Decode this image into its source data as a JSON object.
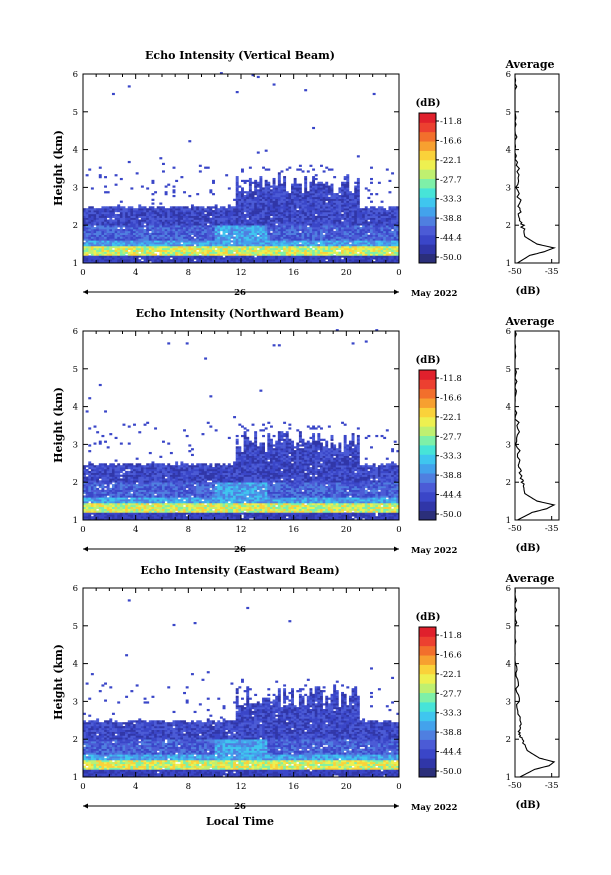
{
  "figure": {
    "xlabel": "Local Time",
    "date_label": "May 2022",
    "day_label": "26"
  },
  "colorbar": {
    "unit": "(dB)",
    "ticks": [
      "-11.8",
      "-16.6",
      "-22.1",
      "-27.7",
      "-33.3",
      "-38.8",
      "-44.4",
      "-50.0"
    ],
    "colors": [
      "#2b2f7a",
      "#3036a8",
      "#3a46c8",
      "#4b5bd6",
      "#4f7fe0",
      "#43a2ec",
      "#3fc6ef",
      "#47e4d8",
      "#7ef0a8",
      "#bff070",
      "#eef050",
      "#fad23a",
      "#f7a030",
      "#f26f2c",
      "#ec4030",
      "#e0202c"
    ]
  },
  "chart_data": [
    {
      "type": "heatmap",
      "title": "Echo Intensity (Vertical Beam)",
      "ylabel": "Height (km)",
      "xlim": [
        0,
        24
      ],
      "ylim": [
        1,
        6
      ],
      "x_ticks": [
        "0",
        "4",
        "8",
        "12",
        "16",
        "20",
        "0"
      ],
      "y_ticks": [
        "1",
        "2",
        "3",
        "4",
        "5",
        "6"
      ],
      "colorbar_range_db": [
        -50.0,
        -11.8
      ],
      "profile": {
        "title": "Average",
        "xlabel": "(dB)",
        "x_ticks": [
          "-50",
          "-35"
        ],
        "heights_km": [
          1.0,
          1.2,
          1.3,
          1.4,
          1.5,
          1.7,
          2.0,
          2.2,
          2.5,
          3.0,
          3.5,
          4.0,
          4.5,
          5.0,
          5.5,
          6.0
        ],
        "db": [
          -49,
          -44,
          -38,
          -34,
          -41,
          -46,
          -47,
          -48,
          -48,
          -49,
          -49,
          -50,
          -50,
          -50,
          -50,
          -50
        ]
      }
    },
    {
      "type": "heatmap",
      "title": "Echo Intensity (Northward Beam)",
      "ylabel": "Height (km)",
      "xlim": [
        0,
        24
      ],
      "ylim": [
        1,
        6
      ],
      "x_ticks": [
        "0",
        "4",
        "8",
        "12",
        "16",
        "20",
        "0"
      ],
      "y_ticks": [
        "1",
        "2",
        "3",
        "4",
        "5",
        "6"
      ],
      "colorbar_range_db": [
        -50.0,
        -11.8
      ],
      "profile": {
        "title": "Average",
        "xlabel": "(dB)",
        "x_ticks": [
          "-50",
          "-35"
        ],
        "heights_km": [
          1.0,
          1.2,
          1.3,
          1.4,
          1.5,
          1.7,
          2.0,
          2.2,
          2.5,
          3.0,
          3.5,
          4.0,
          4.5,
          5.0,
          5.5,
          6.0
        ],
        "db": [
          -49,
          -43,
          -37,
          -34,
          -41,
          -46,
          -47,
          -48,
          -48,
          -49,
          -49,
          -50,
          -50,
          -50,
          -50,
          -50
        ]
      }
    },
    {
      "type": "heatmap",
      "title": "Echo Intensity (Eastward Beam)",
      "ylabel": "Height (km)",
      "xlim": [
        0,
        24
      ],
      "ylim": [
        1,
        6
      ],
      "x_ticks": [
        "0",
        "4",
        "8",
        "12",
        "16",
        "20",
        "0"
      ],
      "y_ticks": [
        "1",
        "2",
        "3",
        "4",
        "5",
        "6"
      ],
      "colorbar_range_db": [
        -50.0,
        -11.8
      ],
      "profile": {
        "title": "Average",
        "xlabel": "(dB)",
        "x_ticks": [
          "-50",
          "-35"
        ],
        "heights_km": [
          1.0,
          1.2,
          1.3,
          1.4,
          1.5,
          1.7,
          2.0,
          2.2,
          2.5,
          3.0,
          3.5,
          4.0,
          4.5,
          5.0,
          5.5,
          6.0
        ],
        "db": [
          -48,
          -42,
          -36,
          -34,
          -40,
          -45,
          -47,
          -48,
          -48,
          -49,
          -49,
          -50,
          -50,
          -50,
          -50,
          -50
        ]
      }
    }
  ]
}
